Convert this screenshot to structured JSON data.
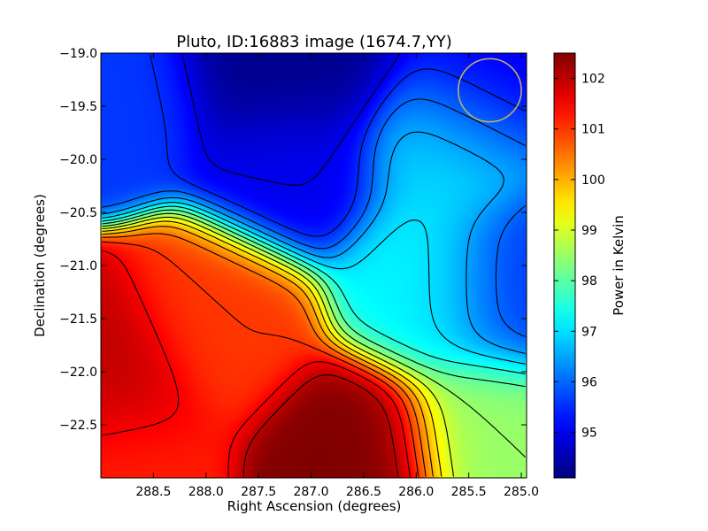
{
  "chart_data": {
    "type": "heatmap",
    "title": "Pluto, ID:16883 image (1674.7,YY)",
    "xlabel": "Right Ascension (degrees)",
    "ylabel": "Declination (degrees)",
    "colorbar_label": "Power in Kelvin",
    "xlim": [
      289.0,
      284.95
    ],
    "ylim": [
      -23.0,
      -19.0
    ],
    "x_ticks": [
      288.5,
      288.0,
      287.5,
      287.0,
      286.5,
      286.0,
      285.5,
      285.0
    ],
    "x_tick_labels": [
      "288.5",
      "288.0",
      "287.5",
      "287.0",
      "286.5",
      "286.0",
      "285.5",
      "285.0"
    ],
    "y_ticks": [
      -19.0,
      -19.5,
      -20.0,
      -20.5,
      -21.0,
      -21.5,
      -22.0,
      -22.5
    ],
    "y_tick_labels": [
      "−19.0",
      "−19.5",
      "−20.0",
      "−20.5",
      "−21.0",
      "−21.5",
      "−22.0",
      "−22.5"
    ],
    "colorbar_range": [
      94.1,
      102.5
    ],
    "colorbar_ticks": [
      95,
      96,
      97,
      98,
      99,
      100,
      101,
      102
    ],
    "colorbar_tick_labels": [
      "95",
      "96",
      "97",
      "98",
      "99",
      "100",
      "101",
      "102"
    ],
    "colormap": "jet",
    "grid": false,
    "contours": true,
    "marker": {
      "shape": "circle",
      "ra": 285.3,
      "dec": -19.35,
      "radius_deg": 0.3,
      "color": "#c8b45a"
    },
    "field_peaks": [
      {
        "ra": 287.5,
        "dec": -19.0,
        "value": 94.2
      },
      {
        "ra": 286.9,
        "dec": -19.05,
        "value": 94.2
      },
      {
        "ra": 285.45,
        "dec": -19.25,
        "value": 95.0
      },
      {
        "ra": 287.15,
        "dec": -20.05,
        "value": 95.0
      },
      {
        "ra": 285.05,
        "dec": -21.2,
        "value": 95.6
      },
      {
        "ra": 288.8,
        "dec": -19.3,
        "value": 95.6
      },
      {
        "ra": 285.75,
        "dec": -19.85,
        "value": 97.0
      },
      {
        "ra": 285.9,
        "dec": -21.2,
        "value": 97.2
      },
      {
        "ra": 288.95,
        "dec": -22.05,
        "value": 102.0
      },
      {
        "ra": 286.6,
        "dec": -22.78,
        "value": 102.5
      },
      {
        "ra": 287.85,
        "dec": -21.55,
        "value": 101.0
      },
      {
        "ra": 288.8,
        "dec": -22.9,
        "value": 101.2
      },
      {
        "ra": 285.3,
        "dec": -22.6,
        "value": 98.5
      }
    ]
  }
}
